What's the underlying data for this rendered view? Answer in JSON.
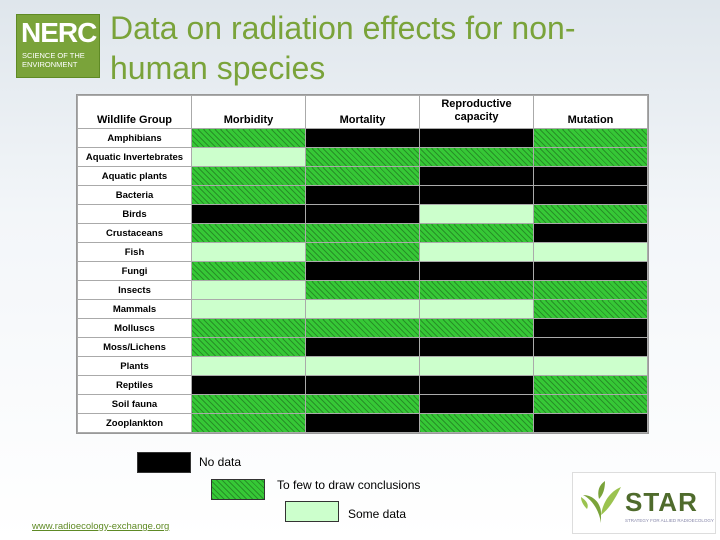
{
  "header": {
    "logo_main": "NERC",
    "logo_sub_1": "SCIENCE OF THE",
    "logo_sub_2": "ENVIRONMENT",
    "title_line1": "Data on radiation effects for non-",
    "title_line2": "human species"
  },
  "table": {
    "columns": [
      "Wildlife Group",
      "Morbidity",
      "Mortality",
      "Reproductive capacity",
      "Mutation"
    ],
    "rows": [
      {
        "group": "Amphibians",
        "cells": [
          "few",
          "none",
          "none",
          "few"
        ]
      },
      {
        "group": "Aquatic Invertebrates",
        "cells": [
          "some",
          "few",
          "few",
          "few"
        ]
      },
      {
        "group": "Aquatic plants",
        "cells": [
          "few",
          "few",
          "none",
          "none"
        ]
      },
      {
        "group": "Bacteria",
        "cells": [
          "few",
          "none",
          "none",
          "none"
        ]
      },
      {
        "group": "Birds",
        "cells": [
          "none",
          "none",
          "some",
          "few"
        ]
      },
      {
        "group": "Crustaceans",
        "cells": [
          "few",
          "few",
          "few",
          "none"
        ]
      },
      {
        "group": "Fish",
        "cells": [
          "some",
          "few",
          "some",
          "some"
        ]
      },
      {
        "group": "Fungi",
        "cells": [
          "few",
          "none",
          "none",
          "none"
        ]
      },
      {
        "group": "Insects",
        "cells": [
          "some",
          "few",
          "few",
          "few"
        ]
      },
      {
        "group": "Mammals",
        "cells": [
          "some",
          "some",
          "some",
          "few"
        ]
      },
      {
        "group": "Molluscs",
        "cells": [
          "few",
          "few",
          "few",
          "none"
        ]
      },
      {
        "group": "Moss/Lichens",
        "cells": [
          "few",
          "none",
          "none",
          "none"
        ]
      },
      {
        "group": "Plants",
        "cells": [
          "some",
          "some",
          "some",
          "some"
        ]
      },
      {
        "group": "Reptiles",
        "cells": [
          "none",
          "none",
          "none",
          "few"
        ]
      },
      {
        "group": "Soil fauna",
        "cells": [
          "few",
          "few",
          "none",
          "few"
        ]
      },
      {
        "group": "Zooplankton",
        "cells": [
          "few",
          "none",
          "few",
          "none"
        ]
      }
    ]
  },
  "legend": {
    "no_data": "No data",
    "too_few": "To few to draw conclusions",
    "some_data": "Some data"
  },
  "footer": {
    "url": "www.radioecology-exchange.org",
    "star_logo": "STAR",
    "star_tagline": "STRATEGY FOR ALLIED RADIOECOLOGY"
  },
  "colors": {
    "brand_green": "#7aa33a",
    "no_data": "#000000",
    "too_few": "#36c836",
    "some_data": "#ccffcc"
  }
}
